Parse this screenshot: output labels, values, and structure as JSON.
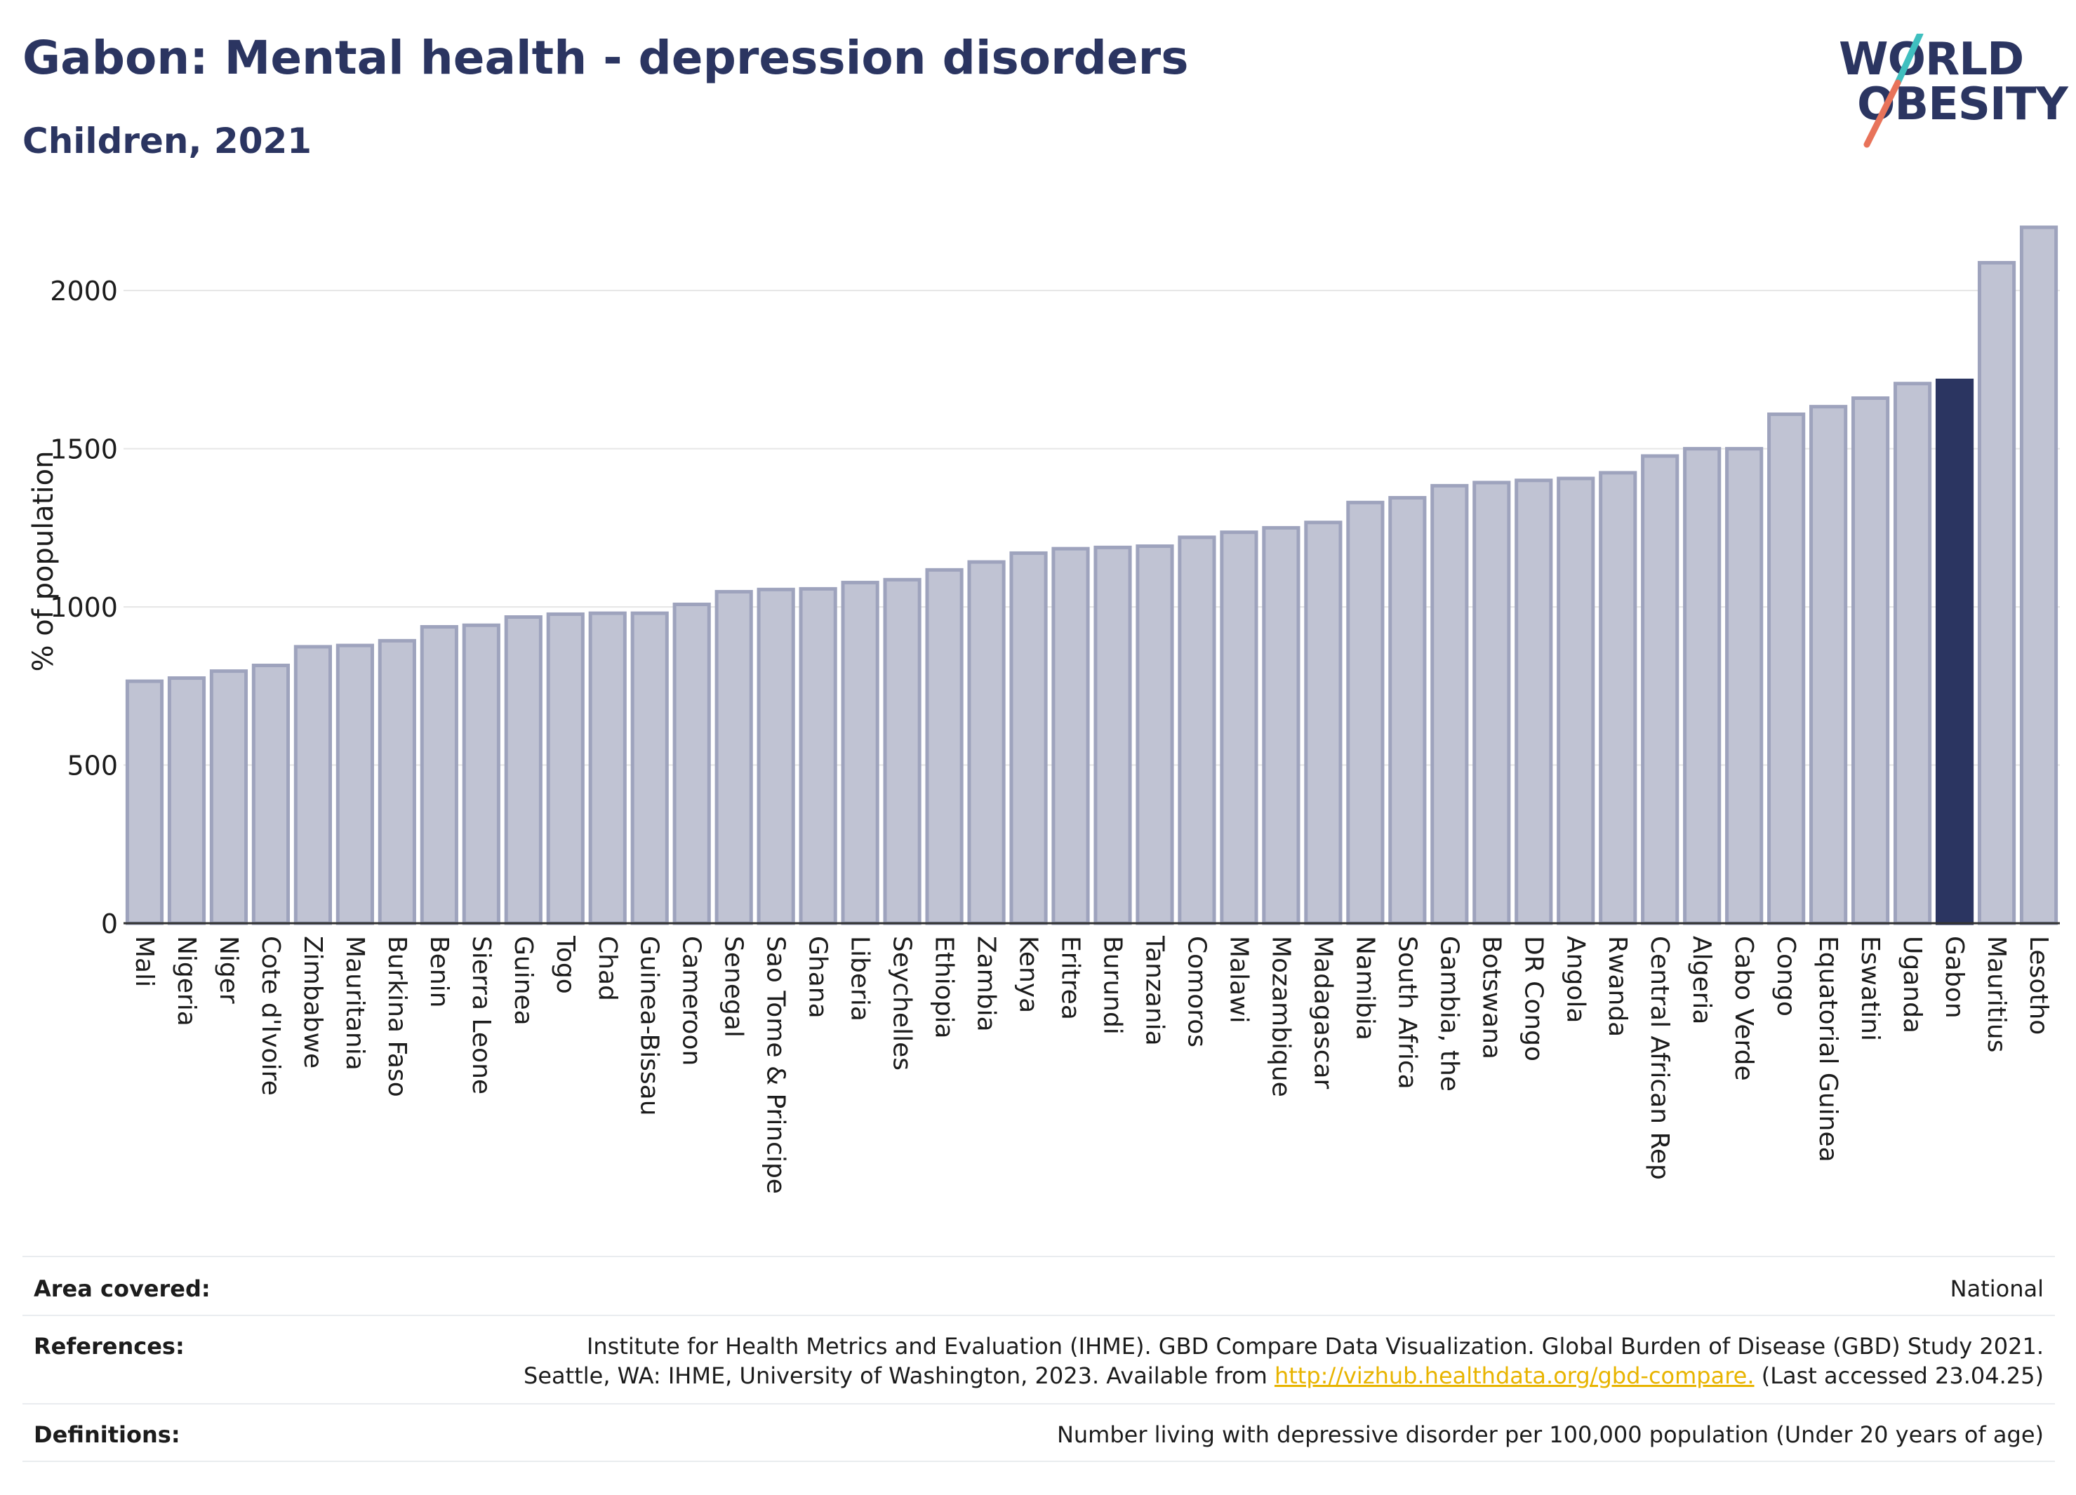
{
  "title": "Gabon: Mental health - depression disorders",
  "subtitle": "Children, 2021",
  "logo": {
    "line1": "WORLD",
    "line2": "OBESITY",
    "colors": {
      "text": "#2b3561",
      "slash_top": "#3fbfbf",
      "slash_bottom": "#e8735a"
    }
  },
  "colors": {
    "bar": "#c0c3d3",
    "bar_stroke": "#9ea3bd",
    "highlight": "#2b3561",
    "grid": "#e6e6e6",
    "axis": "#333333"
  },
  "chart_data": {
    "type": "bar",
    "ylabel": "% of population",
    "ylim": [
      0,
      2200
    ],
    "yticks": [
      0,
      500,
      1000,
      1500,
      2000
    ],
    "highlight": "Gabon",
    "categories": [
      "Mali",
      "Nigeria",
      "Niger",
      "Cote d'Ivoire",
      "Zimbabwe",
      "Mauritania",
      "Burkina Faso",
      "Benin",
      "Sierra Leone",
      "Guinea",
      "Togo",
      "Chad",
      "Guinea-Bissau",
      "Cameroon",
      "Senegal",
      "Sao Tome & Principe",
      "Ghana",
      "Liberia",
      "Seychelles",
      "Ethiopia",
      "Zambia",
      "Kenya",
      "Eritrea",
      "Burundi",
      "Tanzania",
      "Comoros",
      "Malawi",
      "Mozambique",
      "Madagascar",
      "Namibia",
      "South Africa",
      "Gambia, the",
      "Botswana",
      "DR Congo",
      "Angola",
      "Rwanda",
      "Central African Rep",
      "Algeria",
      "Cabo Verde",
      "Congo",
      "Equatorial Guinea",
      "Eswatini",
      "Uganda",
      "Gabon",
      "Mauritius",
      "Lesotho"
    ],
    "values": [
      765,
      775,
      797,
      815,
      874,
      878,
      893,
      937,
      942,
      968,
      977,
      980,
      980,
      1008,
      1048,
      1055,
      1057,
      1077,
      1086,
      1117,
      1142,
      1170,
      1184,
      1188,
      1192,
      1220,
      1236,
      1250,
      1267,
      1330,
      1345,
      1383,
      1393,
      1400,
      1406,
      1424,
      1477,
      1500,
      1500,
      1609,
      1633,
      1660,
      1706,
      1716,
      2088,
      2200
    ]
  },
  "footer": {
    "area_label": "Area covered:",
    "area_value": "National",
    "references_label": "References:",
    "references_line1": "Institute for Health Metrics and Evaluation (IHME). GBD Compare Data Visualization. Global Burden of Disease (GBD) Study 2021.",
    "references_line2_pre": "Seattle, WA: IHME, University of Washington, 2023. Available from ",
    "references_link": "http://vizhub.healthdata.org/gbd-compare.",
    "references_line2_post": " (Last accessed 23.04.25)",
    "definitions_label": "Definitions:",
    "definitions_value": "Number living with depressive disorder per 100,000 population (Under 20 years of age)"
  }
}
